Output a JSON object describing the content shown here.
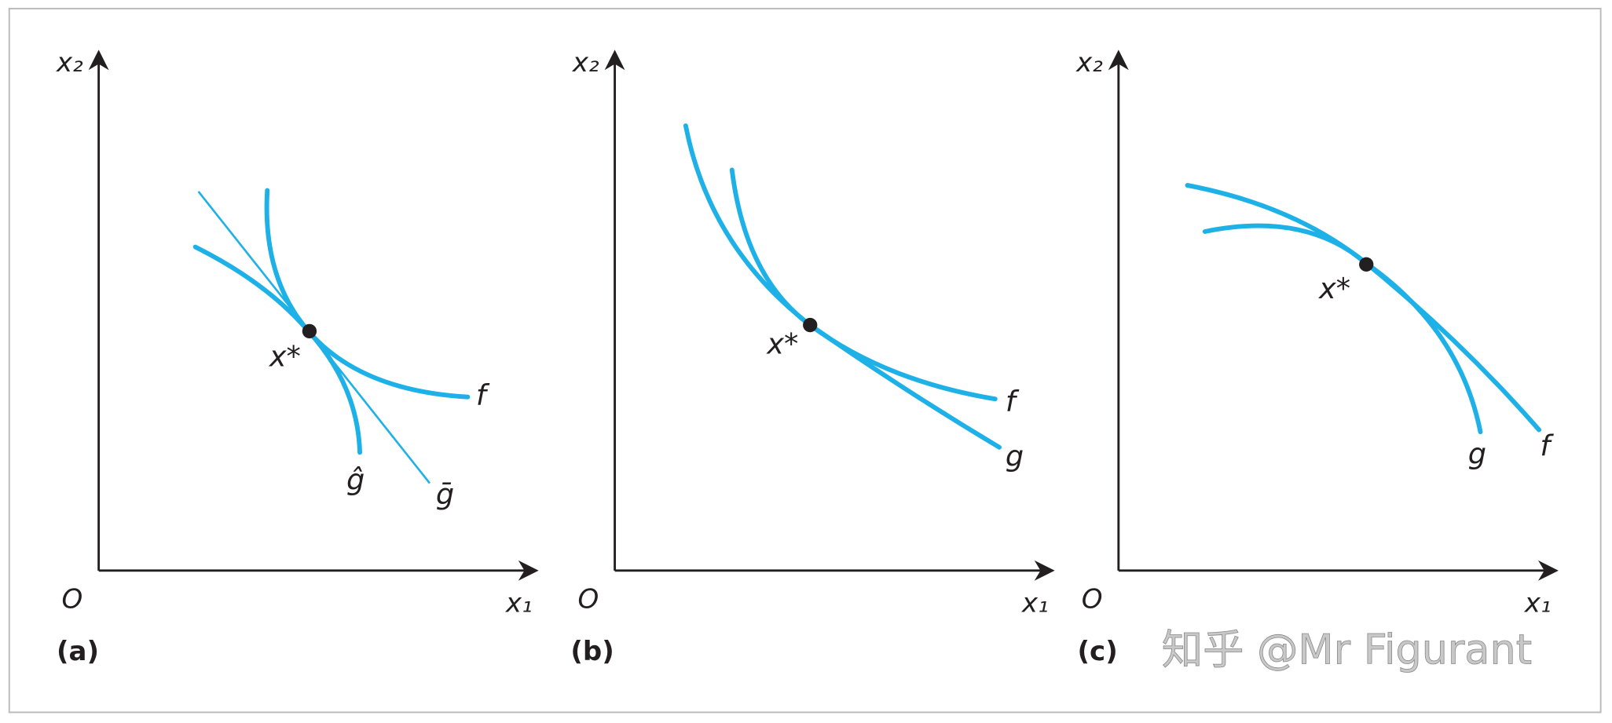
{
  "panels": [
    {
      "label": "(a)",
      "origin": "O",
      "x_axis": "x₁",
      "y_axis": "x₂",
      "point": "x*",
      "curves": [
        "f",
        "ĝ",
        "ḡ"
      ]
    },
    {
      "label": "(b)",
      "origin": "O",
      "x_axis": "x₁",
      "y_axis": "x₂",
      "point": "x*",
      "curves": [
        "f",
        "g"
      ]
    },
    {
      "label": "(c)",
      "origin": "O",
      "x_axis": "x₁",
      "y_axis": "x₂",
      "point": "x*",
      "curves": [
        "g",
        "f"
      ]
    }
  ],
  "watermark": "知乎 @Mr Figurant"
}
